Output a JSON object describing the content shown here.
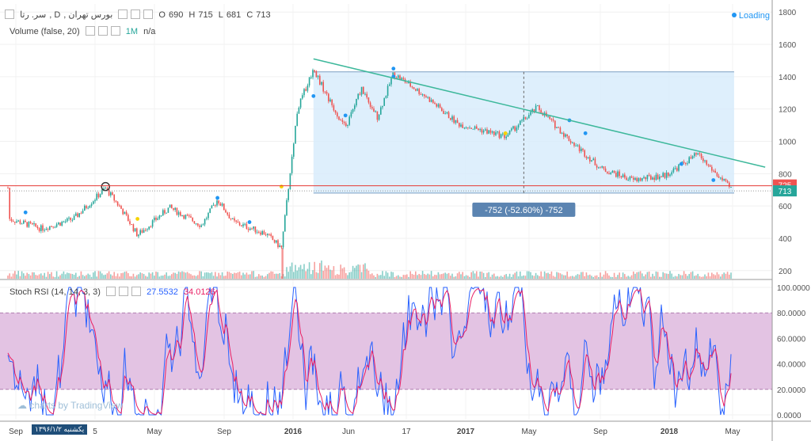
{
  "header": {
    "symbol": "بورس تهران",
    "name": "سر. رتا",
    "interval": "D",
    "ohlc": {
      "o_label": "O",
      "o": "690",
      "h_label": "H",
      "h": "715",
      "l_label": "L",
      "l": "681",
      "c_label": "C",
      "c": "713"
    },
    "volume_label": "Volume (false, 20)",
    "volume_interval": "1M",
    "volume_value": "n/a",
    "loading": "Loading"
  },
  "rsi_legend": {
    "label": "Stoch RSI (14, 14, 3, 3)",
    "k": "27.5532",
    "d": "34.0126",
    "k_color": "#2962ff",
    "d_color": "#e91e63"
  },
  "watermark": "charts by TradingView",
  "date_badge": "۱۳۹۶/۱/۲ یکشنبه",
  "colors": {
    "up": "#26a69a",
    "down": "#ef5350",
    "trendline": "#3db89b",
    "range_fill": "#d6ebfb",
    "range_border": "#7c9fc2",
    "rsi_band": "#e3c3e3"
  },
  "chart_data": {
    "type": "candlestick",
    "price_axis": {
      "ticks": [
        "1800",
        "1600",
        "1400",
        "1200",
        "1000",
        "800",
        "600",
        "400",
        "200"
      ],
      "min": 150,
      "max": 1850
    },
    "rsi_axis": {
      "ticks": [
        "100.0000",
        "80.0000",
        "60.0000",
        "40.0000",
        "20.0000",
        "0.0000"
      ],
      "min": 0,
      "max": 100,
      "band": [
        20,
        80
      ]
    },
    "time_axis": {
      "ticks": [
        "Sep",
        "5",
        "May",
        "Sep",
        "2016",
        "Jun",
        "17",
        "2017",
        "May",
        "Sep",
        "2018",
        "May"
      ]
    },
    "price_path": [
      [
        "2014-08",
        520
      ],
      [
        "2014-10",
        460
      ],
      [
        "2014-12",
        520
      ],
      [
        "2015-02",
        710
      ],
      [
        "2015-03",
        580
      ],
      [
        "2015-04",
        420
      ],
      [
        "2015-06",
        590
      ],
      [
        "2015-08",
        480
      ],
      [
        "2015-09",
        640
      ],
      [
        "2015-10",
        500
      ],
      [
        "2015-12",
        430
      ],
      [
        "2016-01",
        340
      ],
      [
        "2016-02",
        1200
      ],
      [
        "2016-03",
        1450
      ],
      [
        "2016-04",
        1250
      ],
      [
        "2016-05",
        1080
      ],
      [
        "2016-06",
        1330
      ],
      [
        "2016-07",
        1150
      ],
      [
        "2016-08",
        1420
      ],
      [
        "2016-10",
        1280
      ],
      [
        "2016-12",
        1110
      ],
      [
        "2017-03",
        1030
      ],
      [
        "2017-05",
        1210
      ],
      [
        "2017-07",
        1010
      ],
      [
        "2017-09",
        830
      ],
      [
        "2017-11",
        760
      ],
      [
        "2018-01",
        790
      ],
      [
        "2018-03",
        920
      ],
      [
        "2018-05",
        713
      ]
    ],
    "last_price": "713",
    "marked_price": "725",
    "trendline": [
      [
        "2016-03",
        1510
      ],
      [
        "2018-06",
        840
      ]
    ],
    "measure": {
      "label": "-752 (-52.60%) -752",
      "top": 1430,
      "bottom": 680,
      "from": "2016-03",
      "to": "2018-05"
    }
  }
}
